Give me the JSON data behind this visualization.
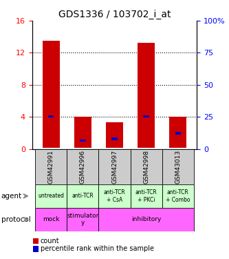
{
  "title": "GDS1336 / 103702_i_at",
  "samples": [
    "GSM42991",
    "GSM42996",
    "GSM42997",
    "GSM42998",
    "GSM43013"
  ],
  "count_tops": [
    13.5,
    4.0,
    3.3,
    13.2,
    4.0
  ],
  "count_bottoms": [
    0.1,
    0.1,
    0.1,
    0.1,
    0.1
  ],
  "pct_tops": [
    4.2,
    1.2,
    1.4,
    4.2,
    2.1
  ],
  "pct_bottoms": [
    3.9,
    0.9,
    1.1,
    3.9,
    1.8
  ],
  "ylim": [
    0,
    16
  ],
  "y2lim": [
    0,
    100
  ],
  "yticks": [
    0,
    4,
    8,
    12,
    16
  ],
  "ytick_labels": [
    "0",
    "4",
    "8",
    "12",
    "16"
  ],
  "y2ticks": [
    0,
    25,
    50,
    75,
    100
  ],
  "y2tick_labels": [
    "0",
    "25",
    "50",
    "75",
    "100%"
  ],
  "agent_labels": [
    "untreated",
    "anti-TCR",
    "anti-TCR\n+ CsA",
    "anti-TCR\n+ PKCi",
    "anti-TCR\n+ Combo"
  ],
  "proto_groups": [
    {
      "label": "mock",
      "span": 1
    },
    {
      "label": "stimulator\ny",
      "span": 1
    },
    {
      "label": "inhibitory",
      "span": 3
    }
  ],
  "sample_bg_color": "#cccccc",
  "agent_bg_color": "#ccffcc",
  "proto_bg_color": "#ff66ff",
  "bar_color": "#cc0000",
  "pct_color": "#0000cc"
}
